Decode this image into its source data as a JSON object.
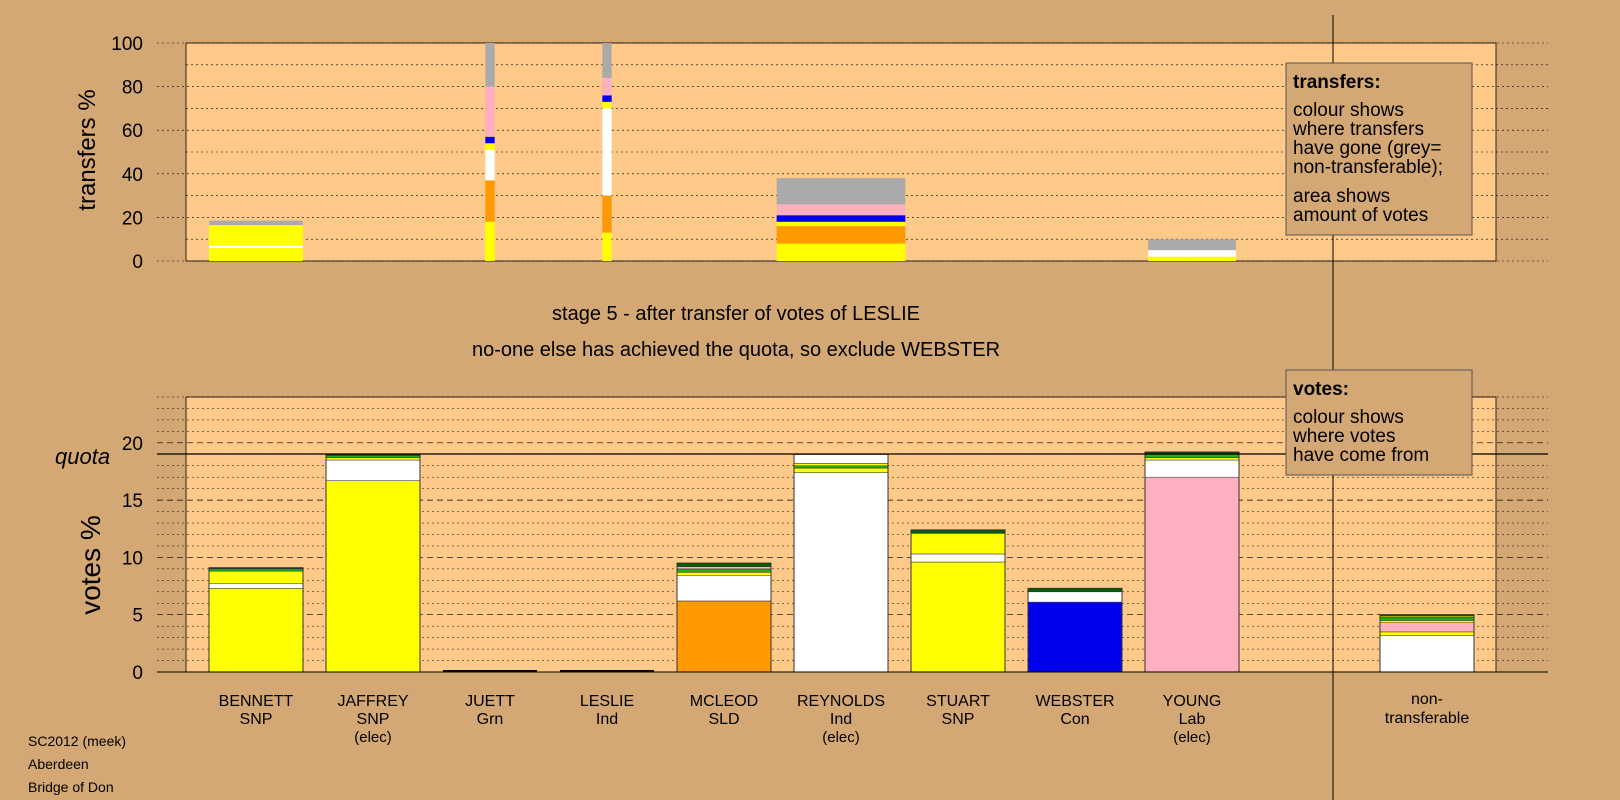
{
  "colors": {
    "background": "#d4a874",
    "plot_bg": "#ffc989",
    "SNP": "#ffff00",
    "SLD": "#ff9900",
    "Ind": "#ffffff",
    "Con": "#0000ee",
    "Lab": "#ffb0c0",
    "Grn": "#22aa22",
    "nontransferable": "#aaaaaa",
    "darkgreen": "#006000"
  },
  "top": {
    "ylabel": "transfers %",
    "yticks": [
      "0",
      "20",
      "40",
      "60",
      "80",
      "100"
    ]
  },
  "stage": {
    "line1": "stage 5 - after transfer of votes of LESLIE",
    "line2": "no-one else has achieved the quota, so exclude WEBSTER"
  },
  "bottom": {
    "ylabel": "votes %",
    "quota_label": "quota",
    "yticks": [
      "0",
      "5",
      "10",
      "15",
      "20"
    ]
  },
  "legend_transfers": {
    "title": "transfers:",
    "lines1": [
      "colour shows",
      "where transfers",
      "have gone (grey=",
      "non-transferable);"
    ],
    "lines2": [
      "area shows",
      "amount of votes"
    ]
  },
  "legend_votes": {
    "title": "votes:",
    "lines": [
      "colour shows",
      "where votes",
      "have come from"
    ]
  },
  "candidates": [
    {
      "name": "BENNETT",
      "party": "SNP",
      "note": ""
    },
    {
      "name": "JAFFREY",
      "party": "SNP",
      "note": "(elec)"
    },
    {
      "name": "JUETT",
      "party": "Grn",
      "note": ""
    },
    {
      "name": "LESLIE",
      "party": "Ind",
      "note": ""
    },
    {
      "name": "MCLEOD",
      "party": "SLD",
      "note": ""
    },
    {
      "name": "REYNOLDS",
      "party": "Ind",
      "note": "(elec)"
    },
    {
      "name": "STUART",
      "party": "SNP",
      "note": ""
    },
    {
      "name": "WEBSTER",
      "party": "Con",
      "note": ""
    },
    {
      "name": "YOUNG",
      "party": "Lab",
      "note": "(elec)"
    }
  ],
  "nontransferable_label": [
    "non-",
    "transferable"
  ],
  "footer": [
    "SC2012 (meek)",
    "Aberdeen",
    "Bridge of Don"
  ],
  "chart_data": [
    {
      "type": "bar",
      "title": "",
      "ylabel": "transfers %",
      "ylim": [
        0,
        100
      ],
      "note": "stacked bars; width proportional to amount of votes transferred",
      "bars": [
        {
          "slot": "BENNETT",
          "width_rel": 0.8,
          "segments": [
            [
              "SNP",
              6
            ],
            [
              "Ind",
              1
            ],
            [
              "SNP",
              9.5
            ],
            [
              "nontransferable",
              2
            ]
          ]
        },
        {
          "slot": "JUETT",
          "width_rel": 0.08,
          "segments": [
            [
              "SNP",
              18
            ],
            [
              "SLD",
              19
            ],
            [
              "Ind",
              14
            ],
            [
              "SNP",
              3
            ],
            [
              "Con",
              3
            ],
            [
              "Lab",
              23
            ],
            [
              "nontransferable",
              20
            ]
          ]
        },
        {
          "slot": "LESLIE",
          "width_rel": 0.08,
          "segments": [
            [
              "SNP",
              13
            ],
            [
              "SLD",
              17
            ],
            [
              "Ind",
              40
            ],
            [
              "SNP",
              3
            ],
            [
              "Con",
              3
            ],
            [
              "Lab",
              8
            ],
            [
              "nontransferable",
              16
            ]
          ]
        },
        {
          "slot": "REYNOLDS",
          "width_rel": 1.1,
          "segments": [
            [
              "SNP",
              8
            ],
            [
              "SLD",
              8
            ],
            [
              "SNP",
              2
            ],
            [
              "Con",
              3
            ],
            [
              "Lab",
              5
            ],
            [
              "nontransferable",
              12
            ]
          ]
        },
        {
          "slot": "YOUNG",
          "width_rel": 0.75,
          "segments": [
            [
              "SNP",
              2
            ],
            [
              "Ind",
              3
            ],
            [
              "nontransferable",
              5
            ]
          ]
        }
      ]
    },
    {
      "type": "bar",
      "title": "",
      "ylabel": "votes %",
      "ylim": [
        0,
        24
      ],
      "quota": 19,
      "note": "stacked bars; colour shows where votes came from",
      "categories": [
        "BENNETT",
        "JAFFREY",
        "JUETT",
        "LESLIE",
        "MCLEOD",
        "REYNOLDS",
        "STUART",
        "WEBSTER",
        "YOUNG",
        "non-transferable"
      ],
      "bars": [
        {
          "segments": [
            [
              "SNP",
              7.3
            ],
            [
              "Ind",
              0.4
            ],
            [
              "SNP",
              1.1
            ],
            [
              "Grn",
              0.2
            ],
            [
              "darkgreen",
              0.1
            ]
          ]
        },
        {
          "segments": [
            [
              "SNP",
              16.7
            ],
            [
              "Ind",
              1.8
            ],
            [
              "SNP",
              0.2
            ],
            [
              "Grn",
              0.2
            ],
            [
              "darkgreen",
              0.1
            ]
          ]
        },
        {
          "segments": []
        },
        {
          "segments": []
        },
        {
          "segments": [
            [
              "SLD",
              6.2
            ],
            [
              "Ind",
              2.2
            ],
            [
              "SNP",
              0.3
            ],
            [
              "Grn",
              0.3
            ],
            [
              "Lab",
              0.2
            ],
            [
              "darkgreen",
              0.3
            ]
          ]
        },
        {
          "segments": [
            [
              "Ind",
              17.4
            ],
            [
              "SNP",
              0.4
            ],
            [
              "Grn",
              0.2
            ],
            [
              "SNP",
              0.2
            ],
            [
              "Ind",
              0.8
            ]
          ]
        },
        {
          "segments": [
            [
              "SNP",
              9.6
            ],
            [
              "Ind",
              0.7
            ],
            [
              "SNP",
              1.8
            ],
            [
              "darkgreen",
              0.3
            ]
          ]
        },
        {
          "segments": [
            [
              "Con",
              6.1
            ],
            [
              "Ind",
              0.9
            ],
            [
              "darkgreen",
              0.3
            ]
          ]
        },
        {
          "segments": [
            [
              "Lab",
              17
            ],
            [
              "Ind",
              1.5
            ],
            [
              "SNP",
              0.2
            ],
            [
              "Grn",
              0.4
            ],
            [
              "darkgreen",
              0.1
            ]
          ]
        },
        {
          "segments": [
            [
              "Ind",
              3.2
            ],
            [
              "SNP",
              0.3
            ],
            [
              "Lab",
              0.8
            ],
            [
              "SNP",
              0.2
            ],
            [
              "Grn",
              0.3
            ],
            [
              "SNP",
              0.1
            ],
            [
              "darkgreen",
              0.1
            ]
          ]
        }
      ]
    }
  ]
}
